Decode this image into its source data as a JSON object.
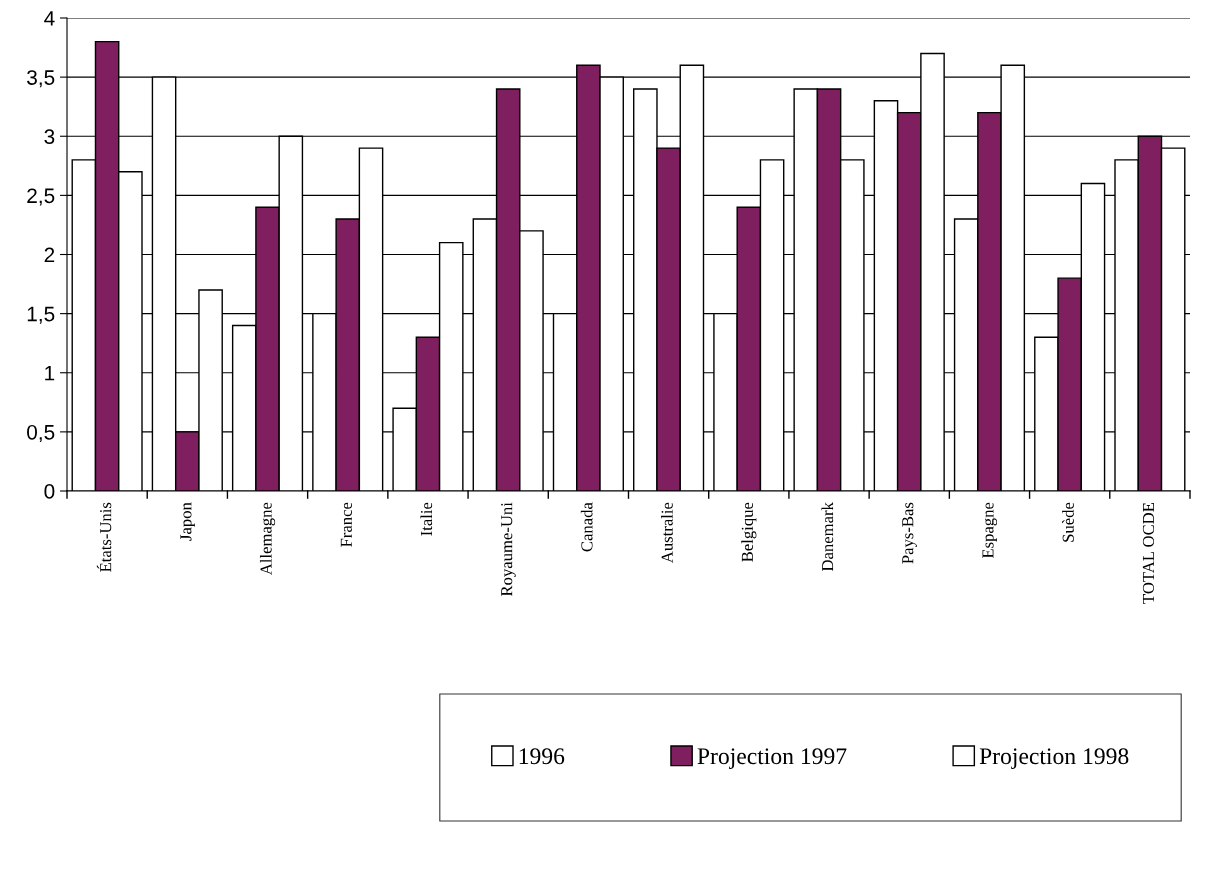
{
  "chart_data": {
    "type": "bar",
    "categories": [
      "États-Unis",
      "Japon",
      "Allemagne",
      "France",
      "Italie",
      "Royaume-Uni",
      "Canada",
      "Australie",
      "Belgique",
      "Danemark",
      "Pays-Bas",
      "Espagne",
      "Suède",
      "TOTAL OCDE"
    ],
    "series": [
      {
        "name": "1996",
        "color": "#ffffff",
        "values": [
          2.8,
          3.5,
          1.4,
          1.5,
          0.7,
          2.3,
          1.5,
          3.4,
          1.5,
          3.4,
          3.3,
          2.3,
          1.3,
          2.8
        ]
      },
      {
        "name": "Projection 1997",
        "color": "#7f1f5f",
        "values": [
          3.8,
          0.5,
          2.4,
          2.3,
          1.3,
          3.4,
          3.6,
          2.9,
          2.4,
          3.4,
          3.2,
          3.2,
          1.8,
          3.0
        ]
      },
      {
        "name": "Projection 1998",
        "color": "#ffffff",
        "values": [
          2.7,
          1.7,
          3.0,
          2.9,
          2.1,
          2.2,
          3.5,
          3.6,
          2.8,
          2.8,
          3.7,
          3.6,
          2.6,
          2.9
        ]
      }
    ],
    "ylim": [
      0,
      4
    ],
    "yticks": [
      {
        "value": 0,
        "label": "0"
      },
      {
        "value": 0.5,
        "label": "0,5"
      },
      {
        "value": 1,
        "label": "1"
      },
      {
        "value": 1.5,
        "label": "1,5"
      },
      {
        "value": 2,
        "label": "2"
      },
      {
        "value": 2.5,
        "label": "2,5"
      },
      {
        "value": 3,
        "label": "3"
      },
      {
        "value": 3.5,
        "label": "3,5"
      },
      {
        "value": 4,
        "label": "4"
      }
    ],
    "grid": "y",
    "legend": "bottom right"
  }
}
